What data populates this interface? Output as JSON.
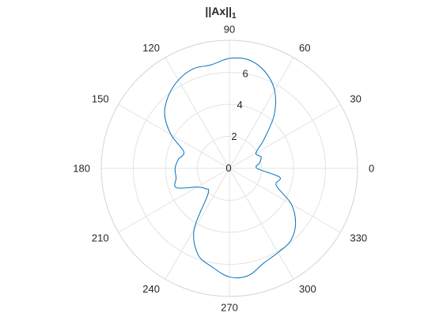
{
  "chart_data": {
    "type": "polar-line",
    "title": "||Ax||",
    "title_subscript": "1",
    "theta_ticks": [
      0,
      30,
      60,
      90,
      120,
      150,
      180,
      210,
      240,
      270,
      300,
      330
    ],
    "theta_tick_labels": [
      "0",
      "30",
      "60",
      "90",
      "120",
      "150",
      "180",
      "210",
      "240",
      "270",
      "300",
      "330"
    ],
    "r_ticks": [
      0,
      2,
      4,
      6
    ],
    "r_tick_labels": [
      "0",
      "2",
      "4",
      "6"
    ],
    "rlim": [
      0,
      8
    ],
    "grid": true,
    "series": [
      {
        "color": "#0072BD",
        "theta_deg": [
          0,
          10,
          20,
          30,
          40,
          50,
          60,
          70,
          80,
          90,
          100,
          110,
          120,
          130,
          140,
          150,
          160,
          170,
          180,
          190,
          200,
          210,
          220,
          230,
          240,
          250,
          260,
          270,
          280,
          290,
          300,
          310,
          320,
          330,
          340,
          350,
          360
        ],
        "r": [
          1.73,
          1.9,
          2.11,
          1.91,
          2.82,
          4.34,
          5.64,
          6.45,
          6.89,
          6.87,
          6.57,
          6.62,
          6.37,
          5.92,
          5.28,
          4.21,
          3.03,
          3.24,
          3.39,
          3.38,
          3.53,
          2.34,
          1.97,
          2.07,
          4.41,
          5.73,
          6.25,
          6.78,
          6.8,
          6.29,
          6.07,
          5.93,
          5.39,
          4.46,
          3.11,
          3.19,
          1.73
        ]
      }
    ]
  }
}
